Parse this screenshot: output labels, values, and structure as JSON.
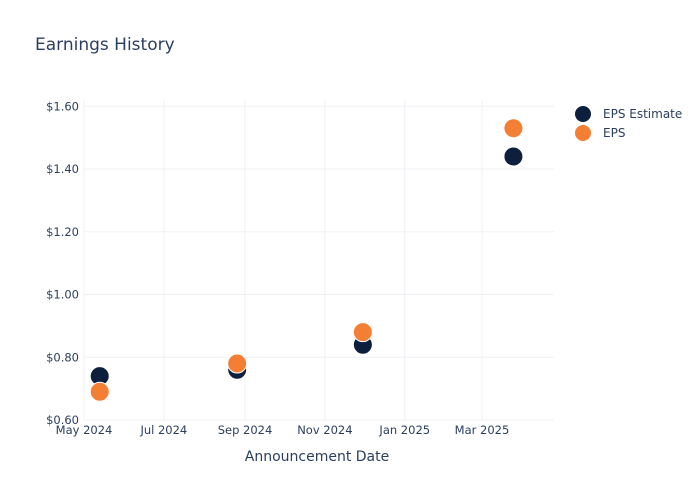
{
  "chart_data": {
    "type": "scatter",
    "title": "Earnings History",
    "xlabel": "Announcement Date",
    "ylabel": "",
    "x_ticks": [
      "May 2024",
      "Jul 2024",
      "Sep 2024",
      "Nov 2024",
      "Jan 2025",
      "Mar 2025"
    ],
    "y_ticks": [
      "$0.60",
      "$0.80",
      "$1.00",
      "$1.20",
      "$1.40",
      "$1.60"
    ],
    "ylim": [
      0.6,
      1.62
    ],
    "xlim": [
      "2024-05-01",
      "2025-04-25"
    ],
    "grid": true,
    "legend_position": "top-right",
    "series": [
      {
        "name": "EPS Estimate",
        "color": "#0d1f3c",
        "points": [
          {
            "x": "2024-05-13",
            "y": 0.74
          },
          {
            "x": "2024-08-26",
            "y": 0.76
          },
          {
            "x": "2024-11-30",
            "y": 0.84
          },
          {
            "x": "2025-03-25",
            "y": 1.44
          }
        ]
      },
      {
        "name": "EPS",
        "color": "#f47f34",
        "points": [
          {
            "x": "2024-05-13",
            "y": 0.69
          },
          {
            "x": "2024-08-26",
            "y": 0.78
          },
          {
            "x": "2024-11-30",
            "y": 0.88
          },
          {
            "x": "2025-03-25",
            "y": 1.53
          }
        ]
      }
    ]
  }
}
